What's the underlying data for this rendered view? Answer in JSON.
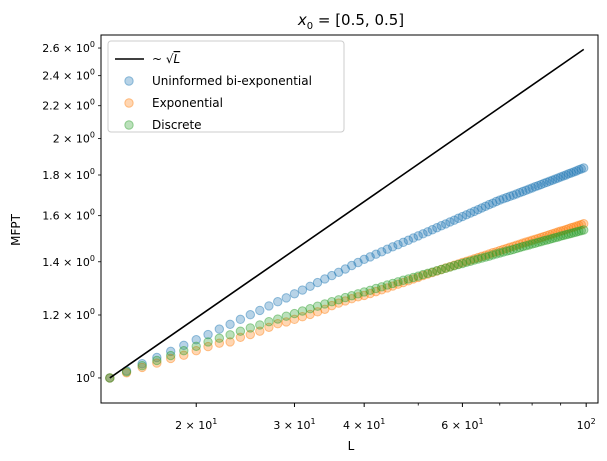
{
  "chart_data": {
    "type": "scatter",
    "title": "x0 = [0.5, 0.5]",
    "title_parts": {
      "var": "x",
      "sub": "0",
      "rest": " = [0.5, 0.5]"
    },
    "xlabel": "L",
    "ylabel": "MFPT",
    "xscale": "log",
    "yscale": "log",
    "xlim": [
      13.5,
      105
    ],
    "ylim": [
      0.93,
      2.7
    ],
    "xticks": [
      {
        "value": 20,
        "mantissa": "2",
        "base": "10",
        "exp": "1"
      },
      {
        "value": 30,
        "mantissa": "3",
        "base": "10",
        "exp": "1"
      },
      {
        "value": 40,
        "mantissa": "4",
        "base": "10",
        "exp": "1"
      },
      {
        "value": 60,
        "mantissa": "6",
        "base": "10",
        "exp": "1"
      },
      {
        "value": 100,
        "mantissa": "",
        "base": "10",
        "exp": "2"
      }
    ],
    "xminor": [
      50,
      70,
      80,
      90
    ],
    "yticks": [
      {
        "value": 1.0,
        "mantissa": "",
        "base": "10",
        "exp": "0"
      },
      {
        "value": 1.2,
        "mantissa": "1.2",
        "base": "10",
        "exp": "0"
      },
      {
        "value": 1.4,
        "mantissa": "1.4",
        "base": "10",
        "exp": "0"
      },
      {
        "value": 1.6,
        "mantissa": "1.6",
        "base": "10",
        "exp": "0"
      },
      {
        "value": 1.8,
        "mantissa": "1.8",
        "base": "10",
        "exp": "0"
      },
      {
        "value": 2.0,
        "mantissa": "2",
        "base": "10",
        "exp": "0"
      },
      {
        "value": 2.2,
        "mantissa": "2.2",
        "base": "10",
        "exp": "0"
      },
      {
        "value": 2.4,
        "mantissa": "2.4",
        "base": "10",
        "exp": "0"
      },
      {
        "value": 2.6,
        "mantissa": "2.6",
        "base": "10",
        "exp": "0"
      }
    ],
    "legend_position": "top-left",
    "grid": false,
    "reference_line": {
      "label": "~ √L",
      "label_parts": {
        "pre": "~ ",
        "sqrt": "L"
      },
      "color": "#000000",
      "x": [
        14,
        99
      ],
      "y": [
        1.0,
        2.59
      ]
    },
    "series": [
      {
        "name": "Uninformed bi-exponential",
        "color": "#1f77b4",
        "x": [
          14,
          15,
          16,
          17,
          18,
          19,
          20,
          21,
          22,
          23,
          24,
          25,
          26,
          27,
          28,
          29,
          30,
          31,
          32,
          33,
          34,
          35,
          36,
          37,
          38,
          39,
          40,
          41,
          42,
          43,
          44,
          45,
          46,
          47,
          48,
          49,
          50,
          51,
          52,
          53,
          54,
          55,
          56,
          57,
          58,
          59,
          60,
          61,
          62,
          63,
          64,
          65,
          66,
          67,
          68,
          69,
          70,
          71,
          72,
          73,
          74,
          75,
          76,
          77,
          78,
          79,
          80,
          81,
          82,
          83,
          84,
          85,
          86,
          87,
          88,
          89,
          90,
          91,
          92,
          93,
          94,
          95,
          96,
          97,
          98,
          99
        ],
        "y": [
          1.0,
          1.021,
          1.042,
          1.061,
          1.08,
          1.099,
          1.117,
          1.134,
          1.152,
          1.168,
          1.185,
          1.201,
          1.216,
          1.232,
          1.247,
          1.261,
          1.276,
          1.29,
          1.304,
          1.318,
          1.332,
          1.345,
          1.358,
          1.371,
          1.385,
          1.397,
          1.41,
          1.42,
          1.431,
          1.441,
          1.452,
          1.462,
          1.471,
          1.481,
          1.49,
          1.5,
          1.509,
          1.518,
          1.527,
          1.536,
          1.545,
          1.554,
          1.562,
          1.571,
          1.579,
          1.588,
          1.596,
          1.604,
          1.612,
          1.62,
          1.628,
          1.636,
          1.644,
          1.652,
          1.659,
          1.667,
          1.674,
          1.68,
          1.686,
          1.692,
          1.698,
          1.704,
          1.71,
          1.716,
          1.722,
          1.728,
          1.734,
          1.74,
          1.745,
          1.751,
          1.757,
          1.762,
          1.768,
          1.773,
          1.779,
          1.784,
          1.79,
          1.795,
          1.8,
          1.806,
          1.811,
          1.816,
          1.821,
          1.827,
          1.832,
          1.837
        ]
      },
      {
        "name": "Exponential",
        "color": "#ff7f0e",
        "x": [
          14,
          15,
          16,
          17,
          18,
          19,
          20,
          21,
          22,
          23,
          24,
          25,
          26,
          27,
          28,
          29,
          30,
          31,
          32,
          33,
          34,
          35,
          36,
          37,
          38,
          39,
          40,
          41,
          42,
          43,
          44,
          45,
          46,
          47,
          48,
          49,
          50,
          51,
          52,
          53,
          54,
          55,
          56,
          57,
          58,
          59,
          60,
          61,
          62,
          63,
          64,
          65,
          66,
          67,
          68,
          69,
          70,
          71,
          72,
          73,
          74,
          75,
          76,
          77,
          78,
          79,
          80,
          81,
          82,
          83,
          84,
          85,
          86,
          87,
          88,
          89,
          90,
          91,
          92,
          93,
          94,
          95,
          96,
          97,
          98,
          99
        ],
        "y": [
          1.0,
          1.015,
          1.031,
          1.044,
          1.058,
          1.068,
          1.082,
          1.095,
          1.106,
          1.11,
          1.125,
          1.134,
          1.145,
          1.158,
          1.17,
          1.176,
          1.185,
          1.194,
          1.202,
          1.211,
          1.22,
          1.233,
          1.242,
          1.25,
          1.258,
          1.265,
          1.27,
          1.277,
          1.284,
          1.291,
          1.298,
          1.305,
          1.312,
          1.318,
          1.325,
          1.332,
          1.338,
          1.345,
          1.351,
          1.357,
          1.363,
          1.369,
          1.375,
          1.38,
          1.386,
          1.391,
          1.397,
          1.402,
          1.407,
          1.412,
          1.417,
          1.422,
          1.427,
          1.432,
          1.437,
          1.441,
          1.446,
          1.451,
          1.455,
          1.46,
          1.464,
          1.469,
          1.473,
          1.478,
          1.482,
          1.486,
          1.49,
          1.494,
          1.498,
          1.502,
          1.506,
          1.51,
          1.514,
          1.518,
          1.522,
          1.526,
          1.53,
          1.533,
          1.537,
          1.541,
          1.545,
          1.548,
          1.552,
          1.556,
          1.559,
          1.563
        ]
      },
      {
        "name": "Discrete",
        "color": "#2ca02c",
        "x": [
          14,
          15,
          16,
          17,
          18,
          19,
          20,
          21,
          22,
          23,
          24,
          25,
          26,
          27,
          28,
          29,
          30,
          31,
          32,
          33,
          34,
          35,
          36,
          37,
          38,
          39,
          40,
          41,
          42,
          43,
          44,
          45,
          46,
          47,
          48,
          49,
          50,
          51,
          52,
          53,
          54,
          55,
          56,
          57,
          58,
          59,
          60,
          61,
          62,
          63,
          64,
          65,
          66,
          67,
          68,
          69,
          70,
          71,
          72,
          73,
          74,
          75,
          76,
          77,
          78,
          79,
          80,
          81,
          82,
          83,
          84,
          85,
          86,
          87,
          88,
          89,
          90,
          91,
          92,
          93,
          94,
          95,
          96,
          97,
          98,
          99
        ],
        "y": [
          1.0,
          1.018,
          1.036,
          1.052,
          1.067,
          1.082,
          1.096,
          1.11,
          1.122,
          1.133,
          1.145,
          1.156,
          1.166,
          1.177,
          1.186,
          1.196,
          1.205,
          1.214,
          1.222,
          1.231,
          1.239,
          1.247,
          1.254,
          1.262,
          1.269,
          1.276,
          1.283,
          1.289,
          1.296,
          1.302,
          1.309,
          1.315,
          1.321,
          1.327,
          1.332,
          1.338,
          1.343,
          1.349,
          1.354,
          1.359,
          1.364,
          1.369,
          1.374,
          1.379,
          1.384,
          1.389,
          1.393,
          1.398,
          1.402,
          1.407,
          1.411,
          1.415,
          1.419,
          1.423,
          1.428,
          1.432,
          1.436,
          1.44,
          1.444,
          1.447,
          1.451,
          1.455,
          1.459,
          1.463,
          1.466,
          1.47,
          1.474,
          1.477,
          1.481,
          1.484,
          1.488,
          1.491,
          1.494,
          1.498,
          1.501,
          1.504,
          1.508,
          1.511,
          1.514,
          1.517,
          1.52,
          1.523,
          1.526,
          1.529,
          1.532,
          1.535
        ]
      }
    ]
  }
}
